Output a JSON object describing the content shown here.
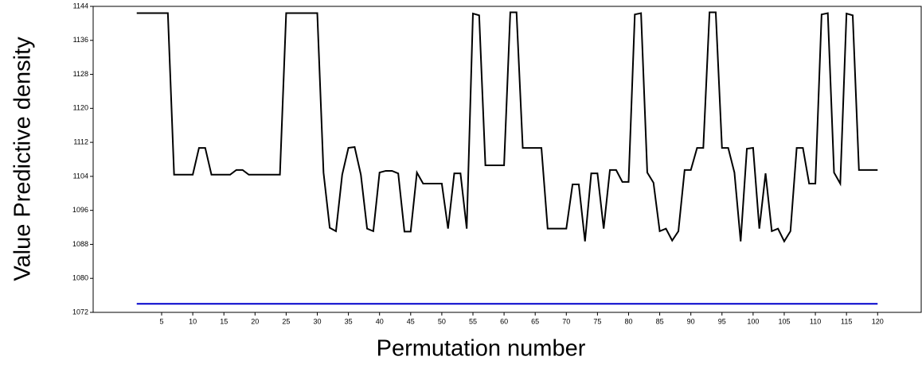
{
  "chart_data": {
    "type": "line",
    "x_label": "Permutation number",
    "y_label": "Value Predictive density",
    "x": [
      1,
      2,
      3,
      4,
      5,
      6,
      7,
      8,
      9,
      10,
      11,
      12,
      13,
      14,
      15,
      16,
      17,
      18,
      19,
      20,
      21,
      22,
      23,
      24,
      25,
      26,
      27,
      28,
      29,
      30,
      31,
      32,
      33,
      34,
      35,
      36,
      37,
      38,
      39,
      40,
      41,
      42,
      43,
      44,
      45,
      46,
      47,
      48,
      49,
      50,
      51,
      52,
      53,
      54,
      55,
      56,
      57,
      58,
      59,
      60,
      61,
      62,
      63,
      64,
      65,
      66,
      67,
      68,
      69,
      70,
      71,
      72,
      73,
      74,
      75,
      76,
      77,
      78,
      79,
      80,
      81,
      82,
      83,
      84,
      85,
      86,
      87,
      88,
      89,
      90,
      91,
      92,
      93,
      94,
      95,
      96,
      97,
      98,
      99,
      100,
      101,
      102,
      103,
      104,
      105,
      106,
      107,
      108,
      109,
      110,
      111,
      112,
      113,
      114,
      115,
      116,
      117,
      118,
      119,
      120
    ],
    "series": [
      {
        "color": "#000000",
        "values": [
          1142.4,
          1142.4,
          1142.4,
          1142.4,
          1142.4,
          1142.4,
          1104.4,
          1104.4,
          1104.4,
          1104.4,
          1110.7,
          1110.7,
          1104.4,
          1104.4,
          1104.4,
          1104.4,
          1105.5,
          1105.5,
          1104.4,
          1104.4,
          1104.4,
          1104.4,
          1104.4,
          1104.4,
          1142.4,
          1142.4,
          1142.4,
          1142.4,
          1142.4,
          1142.4,
          1104.9,
          1091.9,
          1091.1,
          1104.4,
          1110.7,
          1110.9,
          1104.4,
          1091.7,
          1091.1,
          1104.9,
          1105.3,
          1105.3,
          1104.7,
          1091.0,
          1091.0,
          1104.9,
          1102.3,
          1102.3,
          1102.3,
          1102.3,
          1091.7,
          1104.7,
          1104.7,
          1091.7,
          1142.3,
          1141.9,
          1106.6,
          1106.6,
          1106.6,
          1106.6,
          1142.6,
          1142.6,
          1110.7,
          1110.7,
          1110.7,
          1110.7,
          1091.7,
          1091.7,
          1091.7,
          1091.7,
          1102.1,
          1102.1,
          1088.7,
          1104.7,
          1104.7,
          1091.7,
          1105.5,
          1105.5,
          1102.7,
          1102.7,
          1142.1,
          1142.4,
          1104.9,
          1102.5,
          1091.1,
          1091.7,
          1088.9,
          1091.1,
          1105.5,
          1105.5,
          1110.7,
          1110.7,
          1142.6,
          1142.6,
          1110.7,
          1110.7,
          1104.9,
          1088.7,
          1110.5,
          1110.7,
          1091.7,
          1104.7,
          1091.1,
          1091.7,
          1088.7,
          1091.1,
          1110.7,
          1110.7,
          1102.3,
          1102.3,
          1142.1,
          1142.4,
          1104.9,
          1102.3,
          1142.3,
          1141.9,
          1105.5,
          1105.5,
          1105.5,
          1105.5
        ]
      },
      {
        "color": "#0000cc",
        "values": [
          1074,
          1074,
          1074,
          1074,
          1074,
          1074,
          1074,
          1074,
          1074,
          1074,
          1074,
          1074,
          1074,
          1074,
          1074,
          1074,
          1074,
          1074,
          1074,
          1074,
          1074,
          1074,
          1074,
          1074,
          1074,
          1074,
          1074,
          1074,
          1074,
          1074,
          1074,
          1074,
          1074,
          1074,
          1074,
          1074,
          1074,
          1074,
          1074,
          1074,
          1074,
          1074,
          1074,
          1074,
          1074,
          1074,
          1074,
          1074,
          1074,
          1074,
          1074,
          1074,
          1074,
          1074,
          1074,
          1074,
          1074,
          1074,
          1074,
          1074,
          1074,
          1074,
          1074,
          1074,
          1074,
          1074,
          1074,
          1074,
          1074,
          1074,
          1074,
          1074,
          1074,
          1074,
          1074,
          1074,
          1074,
          1074,
          1074,
          1074,
          1074,
          1074,
          1074,
          1074,
          1074,
          1074,
          1074,
          1074,
          1074,
          1074,
          1074,
          1074,
          1074,
          1074,
          1074,
          1074,
          1074,
          1074,
          1074,
          1074,
          1074,
          1074,
          1074,
          1074,
          1074,
          1074,
          1074,
          1074,
          1074,
          1074,
          1074,
          1074,
          1074,
          1074,
          1074,
          1074,
          1074,
          1074,
          1074,
          1074
        ]
      }
    ],
    "xlim": [
      -6,
      127
    ],
    "ylim": [
      1072,
      1144
    ],
    "xticks": [
      5,
      10,
      15,
      20,
      25,
      30,
      35,
      40,
      45,
      50,
      55,
      60,
      65,
      70,
      75,
      80,
      85,
      90,
      95,
      100,
      105,
      110,
      115,
      120
    ],
    "yticks": [
      1072,
      1080,
      1088,
      1096,
      1104,
      1112,
      1120,
      1128,
      1136,
      1144
    ]
  }
}
